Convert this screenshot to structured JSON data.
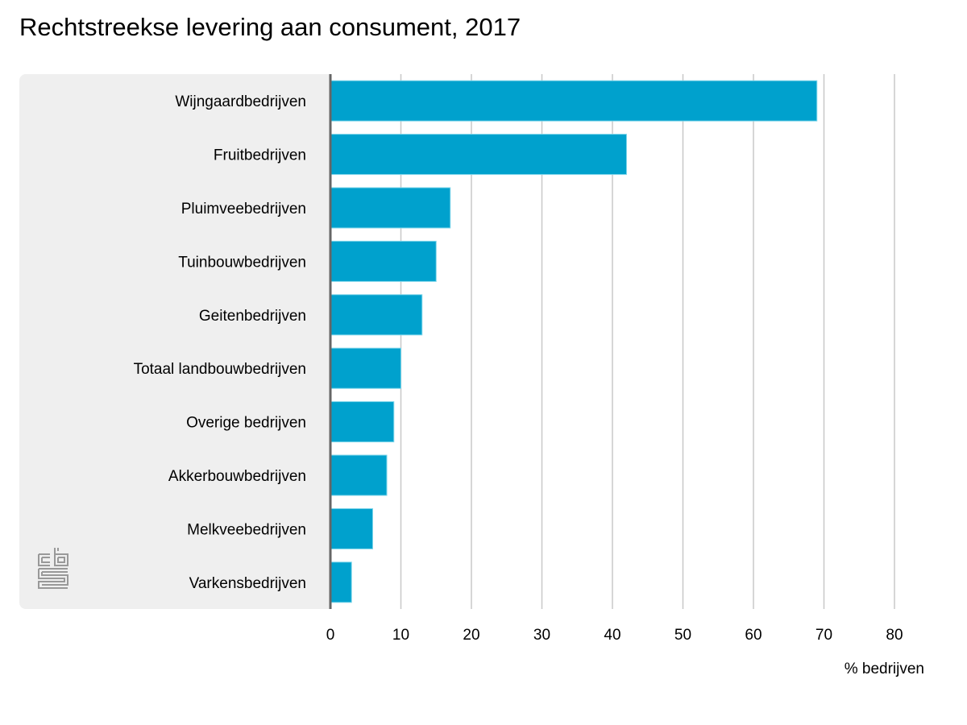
{
  "chart_data": {
    "type": "bar",
    "orientation": "horizontal",
    "title": "Rechtstreekse levering aan consument, 2017",
    "categories": [
      "Wijngaardbedrijven",
      "Fruitbedrijven",
      "Pluimveebedrijven",
      "Tuinbouwbedrijven",
      "Geitenbedrijven",
      "Totaal landbouwbedrijven",
      "Overige bedrijven",
      "Akkerbouwbedrijven",
      "Melkveebedrijven",
      "Varkensbedrijven"
    ],
    "values": [
      69,
      42,
      17,
      15,
      13,
      10,
      9,
      8,
      6,
      3
    ],
    "xlabel": "% bedrijven",
    "ylabel": "",
    "xlim": [
      0,
      80
    ],
    "xticks": [
      "0",
      "10",
      "20",
      "30",
      "40",
      "50",
      "60",
      "70",
      "80"
    ],
    "grid": true,
    "colors": {
      "bar": "#00a1cd",
      "bar_edge": "#7fd6ea",
      "grid": "#c8c8c8",
      "axis": "#666666",
      "panel": "#efefef",
      "logo": "#999999"
    }
  },
  "logo": {
    "name": "cbs"
  }
}
